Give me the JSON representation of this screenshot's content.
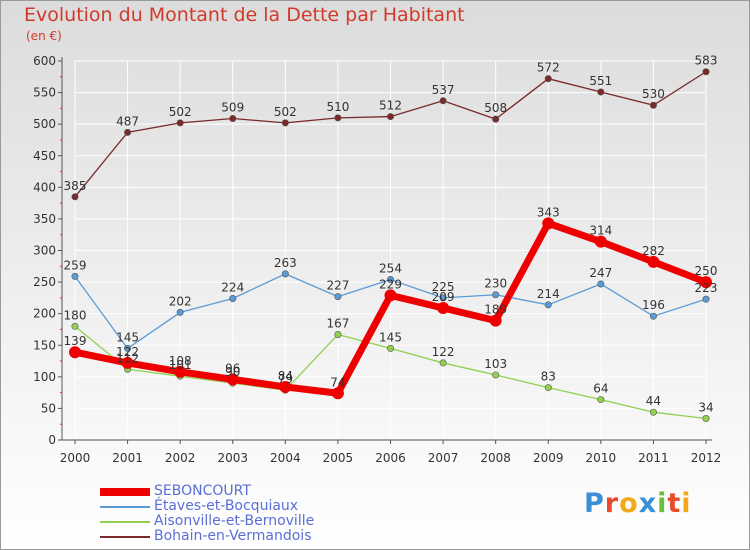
{
  "header": {
    "title": "Evolution du Montant de la Dette par Habitant",
    "unit": "(en €)"
  },
  "logo": {
    "letters": [
      "P",
      "r",
      "o",
      "x",
      "i",
      "t",
      "i"
    ],
    "colors": [
      "#3a8fd6",
      "#e84a2a",
      "#f2a81a",
      "#3a8fd6",
      "#6abf3a",
      "#e84a2a",
      "#f2a81a"
    ]
  },
  "chart_data": {
    "type": "line",
    "title": "Evolution du Montant de la Dette par Habitant",
    "ylabel": "(en €)",
    "xlabel": "",
    "x": [
      "2000",
      "2001",
      "2002",
      "2003",
      "2004",
      "2005",
      "2006",
      "2007",
      "2008",
      "2009",
      "2010",
      "2011",
      "2012"
    ],
    "ylim": [
      0,
      600
    ],
    "yticks": [
      0,
      50,
      100,
      150,
      200,
      250,
      300,
      350,
      400,
      450,
      500,
      550,
      600
    ],
    "grid": true,
    "legend": "bottom-left",
    "series": [
      {
        "name": "SEBONCOURT",
        "color": "#ee0000",
        "values": [
          139,
          122,
          108,
          96,
          84,
          74,
          229,
          209,
          189,
          343,
          314,
          282,
          250
        ]
      },
      {
        "name": "Étaves-et-Bocquiaux",
        "color": "#5b9bd5",
        "values": [
          259,
          145,
          202,
          224,
          263,
          227,
          254,
          225,
          230,
          214,
          247,
          196,
          223
        ]
      },
      {
        "name": "Aisonville-et-Bernoville",
        "color": "#92d050",
        "values": [
          180,
          112,
          101,
          90,
          79,
          167,
          145,
          122,
          103,
          83,
          64,
          44,
          34
        ]
      },
      {
        "name": "Bohain-en-Vermandois",
        "color": "#7a2a2a",
        "values": [
          385,
          487,
          502,
          509,
          502,
          510,
          512,
          537,
          508,
          572,
          551,
          530,
          583
        ]
      }
    ]
  }
}
